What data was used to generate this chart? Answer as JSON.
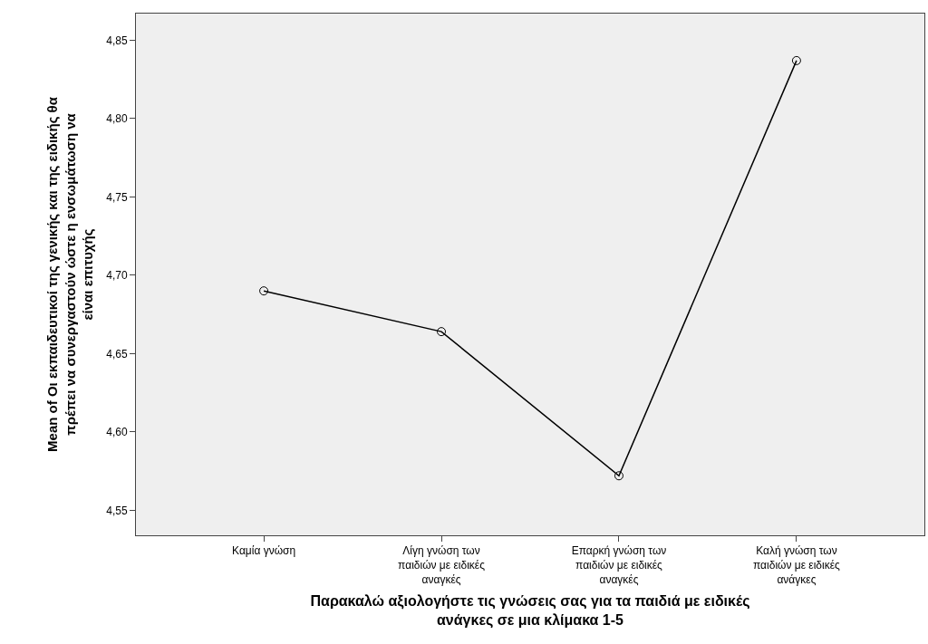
{
  "chart_data": {
    "type": "line",
    "xlabel": "Παρακαλώ αξιολογήστε τις γνώσεις σας για τα παιδιά με ειδικές\nανάγκες σε μια κλίμακα 1-5",
    "ylabel": "Mean of Οι εκπαιδευτικοί της γενικής και της ειδικής θα\nπρέπει να συνεργαστούν ώστε η ενσωμάτωση να\nείναι επιτυχής",
    "categories": [
      "Καμία γνώση",
      "Λίγη γνώση των\nπαιδιών με ειδικές\nαναγκές",
      "Επαρκή γνώση των\nπαιδιών με ειδικές\nαναγκές",
      "Καλή γνώση των\nπαιδιών με ειδικές\nανάγκες"
    ],
    "series": [
      {
        "color": "#000000",
        "values": [
          4.69,
          4.664,
          4.572,
          4.837
        ]
      }
    ],
    "ylim": [
      4.534,
      4.867
    ],
    "yticks": [
      {
        "value": 4.55,
        "label": "4,55"
      },
      {
        "value": 4.6,
        "label": "4,60"
      },
      {
        "value": 4.65,
        "label": "4,65"
      },
      {
        "value": 4.7,
        "label": "4,70"
      },
      {
        "value": 4.75,
        "label": "4,75"
      },
      {
        "value": 4.8,
        "label": "4,80"
      },
      {
        "value": 4.85,
        "label": "4,85"
      }
    ],
    "grid": false,
    "marker": "circle",
    "line_style": "solid"
  }
}
